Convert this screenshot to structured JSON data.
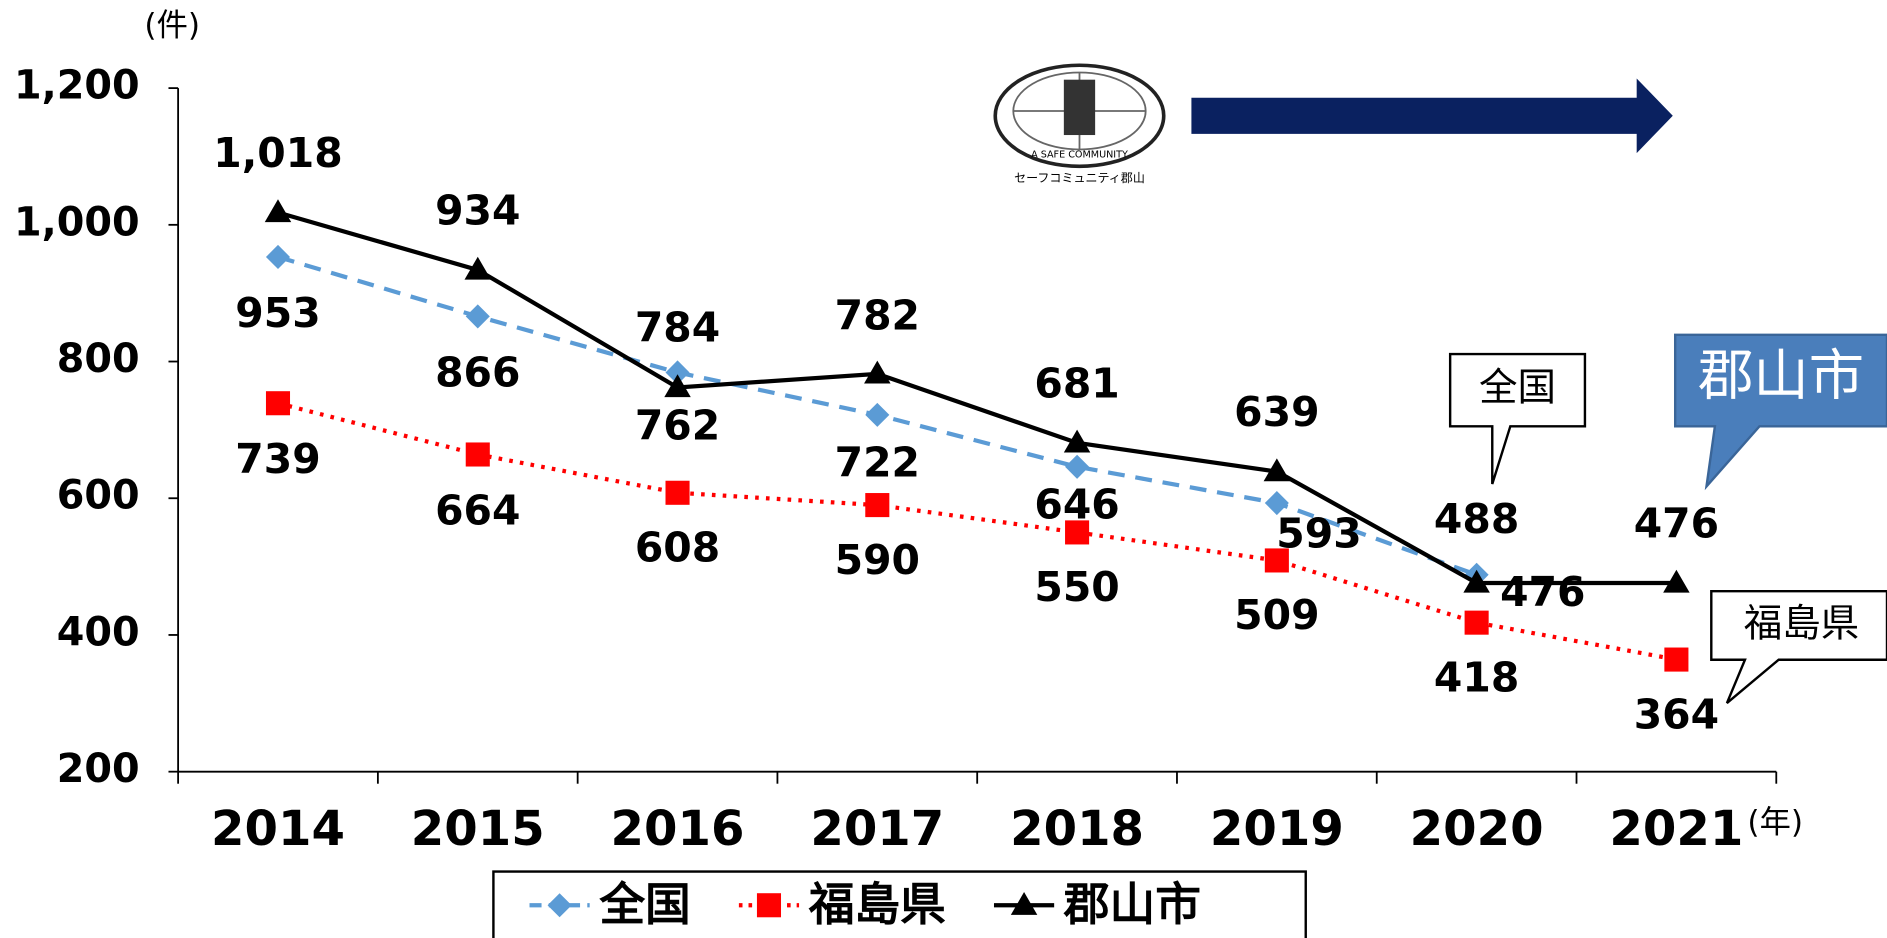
{
  "chart_data": {
    "type": "line",
    "y_axis_label": "(件)",
    "x_axis_label": "(年)",
    "categories": [
      "2014",
      "2015",
      "2016",
      "2017",
      "2018",
      "2019",
      "2020",
      "2021"
    ],
    "series": [
      {
        "name": "全国",
        "color": "#5b9bd5",
        "values": [
          953,
          866,
          784,
          722,
          646,
          593,
          488,
          null
        ]
      },
      {
        "name": "福島県",
        "color": "#ff0000",
        "values": [
          739,
          664,
          608,
          590,
          550,
          509,
          418,
          364
        ]
      },
      {
        "name": "郡山市",
        "color": "#000000",
        "values": [
          1018,
          934,
          762,
          782,
          681,
          639,
          476,
          476
        ],
        "value_labels": [
          "1,018",
          "934",
          "762",
          "782",
          "681",
          "639",
          "476",
          "476"
        ]
      }
    ],
    "ylim": [
      200,
      1200
    ],
    "yticks": [
      200,
      400,
      600,
      800,
      {
        "value": 1000,
        "label": "1,000"
      },
      {
        "value": 1200,
        "label": "1,200"
      }
    ],
    "legend": "bottom",
    "annotations": [
      "全国",
      "福島県",
      "郡山市"
    ],
    "logo": {
      "text": "A SAFE COMMUNITY",
      "caption": "セーフコミュニティ郡山"
    }
  }
}
